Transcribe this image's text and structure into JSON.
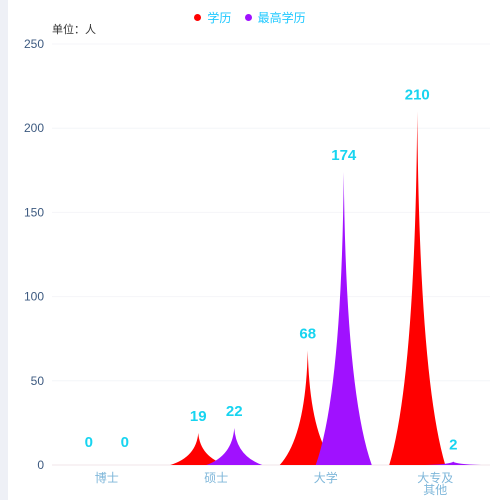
{
  "chart_data": {
    "type": "bar",
    "unit_label": "单位：人",
    "categories": [
      "博士",
      "硕士",
      "大学",
      "大专及\n其他"
    ],
    "series": [
      {
        "name": "学历",
        "values": [
          0,
          19,
          68,
          210
        ],
        "color": "#ff0000"
      },
      {
        "name": "最高学历",
        "values": [
          0,
          22,
          174,
          2
        ],
        "color": "#a011ff"
      }
    ],
    "ylim": [
      0,
      250
    ],
    "yticks": [
      0,
      50,
      100,
      150,
      200,
      250
    ],
    "grid": true,
    "legend_position": "top-center",
    "label_color": "#17d4f0",
    "axis_label_color": "#7fb7da"
  }
}
